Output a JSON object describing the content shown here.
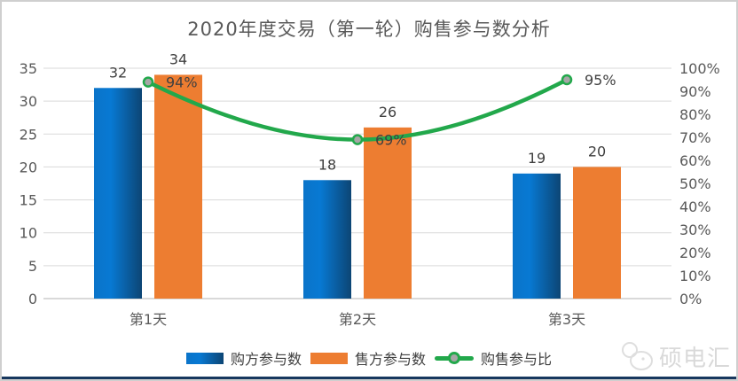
{
  "title": "2020年度交易（第一轮）购售参与数分析",
  "chart_data": {
    "type": "bar",
    "combo": "bar+line",
    "categories": [
      "第1天",
      "第2天",
      "第3天"
    ],
    "series": [
      {
        "name": "购方参与数",
        "type": "bar",
        "axis": "left",
        "values": [
          32,
          18,
          19
        ]
      },
      {
        "name": "售方参与数",
        "type": "bar",
        "axis": "left",
        "values": [
          34,
          26,
          20
        ]
      },
      {
        "name": "购售参与比",
        "type": "line",
        "axis": "right",
        "values": [
          94,
          69,
          95
        ],
        "labels": [
          "94%",
          "69%",
          "95%"
        ]
      }
    ],
    "left_axis": {
      "min": 0,
      "max": 35,
      "ticks": [
        0,
        5,
        10,
        15,
        20,
        25,
        30,
        35
      ]
    },
    "right_axis": {
      "min": 0,
      "max": 100,
      "ticks": [
        "0%",
        "10%",
        "20%",
        "30%",
        "40%",
        "50%",
        "60%",
        "70%",
        "80%",
        "90%",
        "100%"
      ]
    },
    "grid": true,
    "legend_position": "bottom"
  },
  "legend": {
    "items": [
      "购方参与数",
      "售方参与数",
      "购售参与比"
    ]
  },
  "logo": {
    "text": "硕电汇"
  },
  "colors": {
    "bar_blue_left": "#0A74C9",
    "bar_blue_mid": "#0879D3",
    "bar_blue_right": "#0C4574",
    "bar_orange": "#ED7D31",
    "line_green": "#22A84B",
    "marker_gray": "#A6A6A6",
    "grid_line": "#D9D9D9",
    "axis_text": "#595959",
    "data_label_text": "#404040",
    "bottom_bar": "#17375E",
    "logo_text": "#D9D9D9"
  }
}
